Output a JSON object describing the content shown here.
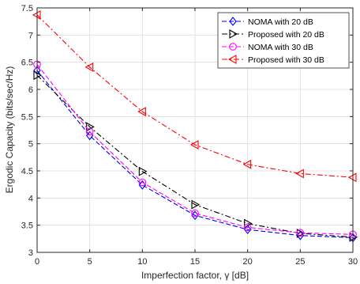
{
  "chart_data": {
    "type": "line",
    "xlabel": "Imperfection factor,  γ [dB]",
    "ylabel": "Ergodic Capacity (bits/sec/Hz)",
    "xlim": [
      0,
      30
    ],
    "ylim": [
      3,
      7.5
    ],
    "xticks": [
      0,
      5,
      10,
      15,
      20,
      25,
      30
    ],
    "yticks": [
      3,
      3.5,
      4,
      4.5,
      5,
      5.5,
      6,
      6.5,
      7,
      7.5
    ],
    "xtick_labels": [
      "0",
      "5",
      "10",
      "15",
      "20",
      "25",
      "30"
    ],
    "ytick_labels": [
      "3",
      "3.5",
      "4",
      "4.5",
      "5",
      "5.5",
      "6",
      "6.5",
      "7",
      "7.5"
    ],
    "grid": true,
    "legend_position": "top-right",
    "x": [
      0,
      5,
      10,
      15,
      20,
      25,
      30
    ],
    "series": [
      {
        "name": "NOMA with 20 dB",
        "color": "#0000ff",
        "marker": "diamond",
        "line": "dashed",
        "values": [
          6.35,
          5.15,
          4.24,
          3.68,
          3.42,
          3.31,
          3.27
        ]
      },
      {
        "name": "Proposed with 20 dB",
        "color": "#000000",
        "marker": "triangle-right",
        "line": "dashdot",
        "values": [
          6.26,
          5.31,
          4.49,
          3.88,
          3.53,
          3.35,
          3.28
        ]
      },
      {
        "name": "NOMA with 30 dB",
        "color": "#ff00ff",
        "marker": "circle",
        "line": "dashed",
        "values": [
          6.46,
          5.22,
          4.29,
          3.72,
          3.46,
          3.36,
          3.33
        ]
      },
      {
        "name": "Proposed with 30 dB",
        "color": "#ff0000",
        "marker": "triangle-left",
        "line": "dashdot",
        "values": [
          7.37,
          6.41,
          5.59,
          4.98,
          4.62,
          4.45,
          4.38
        ]
      }
    ]
  }
}
